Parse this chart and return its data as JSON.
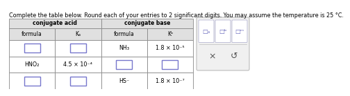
{
  "title": "Complete the table below. Round each of your entries to 2 significant digits. You may assume the temperature is 25 °C.",
  "rows": [
    [
      "",
      "",
      "NH₃",
      "1.8 × 10⁻⁵"
    ],
    [
      "HNO₂",
      "4.5 × 10⁻⁴",
      "",
      ""
    ],
    [
      "",
      "",
      "HS⁻",
      "1.8 × 10⁻⁷"
    ]
  ],
  "header_bg": "#e0e0e0",
  "cell_bg": "#ffffff",
  "empty_bg": "#ffffff",
  "empty_border": "#8888cc",
  "table_border": "#888888",
  "panel_bg": "#f0f0f0",
  "panel_border": "#bbbbbb",
  "title_fontsize": 5.8,
  "header_fontsize": 5.5,
  "subheader_fontsize": 5.5,
  "cell_fontsize": 5.8,
  "bg_color": "#ffffff"
}
